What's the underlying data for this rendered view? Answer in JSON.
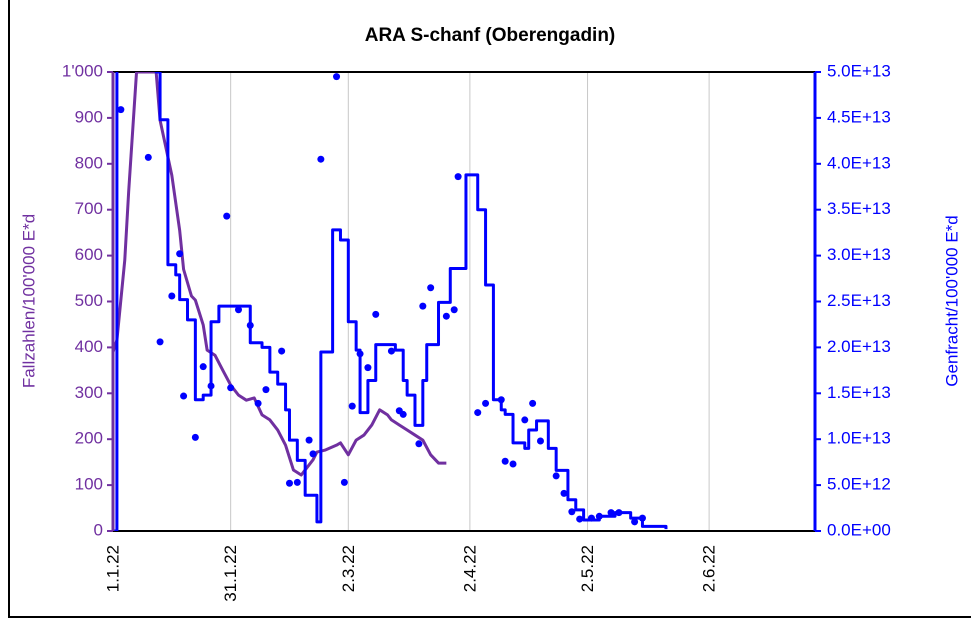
{
  "chart_data": {
    "type": "line",
    "title": "ARA S-chanf (Oberengadin)",
    "ylabel": "Fallzahlen/100'000 E*d",
    "y2label": "Genfracht/100'000 E*d",
    "xlim": [
      0,
      179
    ],
    "xticks": [
      {
        "value": 0,
        "label": "1.1.22"
      },
      {
        "value": 30,
        "label": "31.1.22"
      },
      {
        "value": 60,
        "label": "2.3.22"
      },
      {
        "value": 91,
        "label": "2.4.22"
      },
      {
        "value": 121,
        "label": "2.5.22"
      },
      {
        "value": 152,
        "label": "2.6.22"
      }
    ],
    "ylim": [
      0,
      1000
    ],
    "yticks": [
      0,
      100,
      200,
      300,
      400,
      500,
      600,
      700,
      800,
      900,
      {
        "value": 1000,
        "label": "1'000"
      }
    ],
    "y2lim": [
      0,
      50000000000000.0
    ],
    "y2ticks": [
      {
        "value": 0,
        "label": "0.0E+00"
      },
      {
        "value": 5000000000000.0,
        "label": "5.0E+12"
      },
      {
        "value": 10000000000000.0,
        "label": "1.0E+13"
      },
      {
        "value": 15000000000000.0,
        "label": "1.5E+13"
      },
      {
        "value": 20000000000000.0,
        "label": "2.0E+13"
      },
      {
        "value": 25000000000000.0,
        "label": "2.5E+13"
      },
      {
        "value": 30000000000000.0,
        "label": "3.0E+13"
      },
      {
        "value": 35000000000000.0,
        "label": "3.5E+13"
      },
      {
        "value": 40000000000000.0,
        "label": "4.0E+13"
      },
      {
        "value": 45000000000000.0,
        "label": "4.5E+13"
      },
      {
        "value": 50000000000000.0,
        "label": "5.0E+13"
      }
    ],
    "xgrid": true,
    "series": [
      {
        "type": "line",
        "color": "#7030a0",
        "axis": "y",
        "x": [
          0,
          1,
          3,
          4,
          6,
          11,
          12,
          15,
          17,
          18,
          20,
          21,
          23,
          24,
          26,
          28,
          30,
          32,
          34,
          36,
          38,
          40,
          42,
          44,
          46,
          48,
          49,
          51,
          52,
          54,
          57,
          58,
          60,
          62,
          64,
          66,
          68,
          70,
          71,
          73,
          75,
          77,
          79,
          81,
          83,
          85
        ],
        "values": [
          390,
          416,
          590,
          740,
          1000,
          1000,
          895,
          775,
          655,
          570,
          512,
          503,
          449,
          394,
          383,
          350,
          318,
          296,
          285,
          290,
          253,
          242,
          220,
          187,
          133,
          122,
          133,
          155,
          172,
          176,
          187,
          192,
          166,
          198,
          209,
          231,
          264,
          253,
          242,
          231,
          220,
          209,
          198,
          166,
          148,
          148
        ]
      },
      {
        "type": "step",
        "color": "#0000ff",
        "axis": "y2",
        "x": [
          0,
          1,
          11,
          12,
          14,
          16,
          17,
          19,
          21,
          23,
          25,
          27,
          35,
          38,
          40,
          42,
          44,
          45,
          47,
          49,
          52,
          53,
          56,
          58,
          60,
          62,
          63,
          65,
          67,
          72,
          74,
          75,
          77,
          79,
          80,
          83,
          86,
          90,
          93,
          95,
          97,
          99,
          100,
          102,
          105,
          106,
          108,
          111,
          113,
          116,
          118,
          120,
          124,
          128,
          132,
          135,
          141
        ],
        "values": [
          0,
          56000000000000.0,
          50000000000000.0,
          44800000000000.0,
          29000000000000.0,
          27900000000000.0,
          25200000000000.0,
          23000000000000.0,
          14300000000000.0,
          14800000000000.0,
          22800000000000.0,
          24500000000000.0,
          20500000000000.0,
          20000000000000.0,
          17300000000000.0,
          16000000000000.0,
          13200000000000.0,
          9900000000000.0,
          7700000000000.0,
          3900000000000.0,
          1000000000000.0,
          19500000000000.0,
          32800000000000.0,
          31700000000000.0,
          22800000000000.0,
          19700000000000.0,
          12900000000000.0,
          16400000000000.0,
          20300000000000.0,
          19700000000000.0,
          16400000000000.0,
          14800000000000.0,
          11500000000000.0,
          16400000000000.0,
          20300000000000.0,
          24900000000000.0,
          28600000000000.0,
          38800000000000.0,
          35000000000000.0,
          26800000000000.0,
          14300000000000.0,
          13200000000000.0,
          12700000000000.0,
          9600000000000.0,
          9000000000000.0,
          11000000000000.0,
          12000000000000.0,
          9000000000000.0,
          6600000000000.0,
          3400000000000.0,
          2300000000000.0,
          1200000000000.0,
          1600000000000.0,
          2000000000000.0,
          1400000000000.0,
          500000000000.0,
          200000000000.0
        ]
      },
      {
        "type": "scatter",
        "color": "#0000ff",
        "axis": "y2",
        "x": [
          2,
          9,
          12,
          15,
          17,
          18,
          21,
          23,
          25,
          29,
          30,
          32,
          35,
          37,
          39,
          43,
          45,
          47,
          50,
          51,
          53,
          57,
          59,
          61,
          63,
          65,
          67,
          71,
          73,
          74,
          78,
          79,
          81,
          85,
          87,
          88,
          93,
          95,
          99,
          100,
          102,
          105,
          107,
          109,
          113,
          115,
          117,
          119,
          122,
          124,
          127,
          129,
          133,
          135
        ],
        "values": [
          45900000000000.0,
          40700000000000.0,
          20600000000000.0,
          25600000000000.0,
          30200000000000.0,
          14700000000000.0,
          10200000000000.0,
          17900000000000.0,
          15800000000000.0,
          34300000000000.0,
          15600000000000.0,
          24100000000000.0,
          22400000000000.0,
          13900000000000.0,
          15400000000000.0,
          19600000000000.0,
          5200000000000.0,
          5300000000000.0,
          9900000000000.0,
          8400000000000.0,
          40500000000000.0,
          49500000000000.0,
          5300000000000.0,
          13600000000000.0,
          19300000000000.0,
          17800000000000.0,
          23600000000000.0,
          19600000000000.0,
          13100000000000.0,
          12700000000000.0,
          9500000000000.0,
          24500000000000.0,
          26500000000000.0,
          23400000000000.0,
          24100000000000.0,
          38600000000000.0,
          12900000000000.0,
          13900000000000.0,
          14300000000000.0,
          7600000000000.0,
          7300000000000.0,
          12100000000000.0,
          13900000000000.0,
          9800000000000.0,
          6000000000000.0,
          4100000000000.0,
          2100000000000.0,
          1300000000000.0,
          1400000000000.0,
          1600000000000.0,
          2000000000000.0,
          2000000000000.0,
          1000000000000.0,
          1400000000000.0
        ]
      }
    ]
  }
}
